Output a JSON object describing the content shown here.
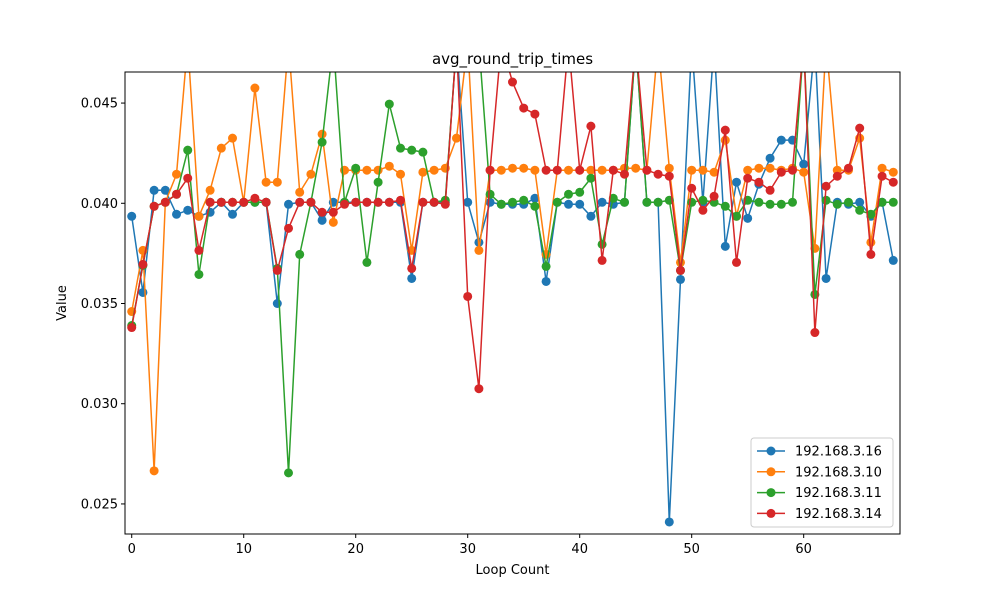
{
  "chart_data": {
    "type": "line",
    "title": "avg_round_trip_times",
    "xlabel": "Loop Count",
    "ylabel": "Value",
    "xlim": [
      -0.6,
      68.6
    ],
    "ylim": [
      0.0235,
      0.04655
    ],
    "xticks": [
      0,
      10,
      20,
      30,
      40,
      50,
      60
    ],
    "xtick_labels": [
      "0",
      "10",
      "20",
      "30",
      "40",
      "50",
      "60"
    ],
    "yticks": [
      0.025,
      0.03,
      0.035,
      0.04,
      0.045
    ],
    "ytick_labels": [
      "0.025",
      "0.030",
      "0.035",
      "0.040",
      "0.045"
    ],
    "legend_position": "lower-right",
    "grid": false,
    "series": [
      {
        "name": "192.168.3.16",
        "color": "#1f77b4",
        "values": [
          0.03935,
          0.03555,
          0.04065,
          0.04065,
          0.03945,
          0.03965,
          0.03935,
          0.03955,
          0.04005,
          0.03945,
          0.04005,
          0.04005,
          0.04005,
          0.035,
          0.03995,
          0.04005,
          0.04005,
          0.03915,
          0.04005,
          0.04005,
          0.04005,
          0.04005,
          0.04005,
          0.04005,
          0.04005,
          0.03625,
          0.04005,
          0.04005,
          0.04005,
          0.048,
          0.04005,
          0.03805,
          0.04005,
          0.03995,
          0.03995,
          0.03995,
          0.04025,
          0.0361,
          0.04005,
          0.03995,
          0.03995,
          0.03935,
          0.04005,
          0.03995,
          0.04005,
          0.048,
          0.04005,
          0.04005,
          0.0241,
          0.0362,
          0.048,
          0.04005,
          0.048,
          0.03785,
          0.04105,
          0.03925,
          0.04095,
          0.04225,
          0.04315,
          0.04315,
          0.04195,
          0.048,
          0.03625,
          0.04005,
          0.03995,
          0.04005,
          0.03935,
          0.04005,
          0.03715
        ]
      },
      {
        "name": "192.168.3.10",
        "color": "#ff7f0e",
        "values": [
          0.0346,
          0.03765,
          0.02665,
          0.04005,
          0.04145,
          0.048,
          0.03935,
          0.04065,
          0.04275,
          0.04325,
          0.04005,
          0.04575,
          0.04105,
          0.04105,
          0.048,
          0.04055,
          0.04145,
          0.04345,
          0.03905,
          0.04165,
          0.04165,
          0.04165,
          0.04165,
          0.04185,
          0.04145,
          0.03765,
          0.04155,
          0.04165,
          0.04175,
          0.04325,
          0.048,
          0.03765,
          0.04165,
          0.04165,
          0.04175,
          0.04175,
          0.04165,
          0.03745,
          0.04165,
          0.04165,
          0.04165,
          0.04165,
          0.04165,
          0.04165,
          0.04175,
          0.04175,
          0.04165,
          0.048,
          0.04175,
          0.03705,
          0.04165,
          0.04165,
          0.04155,
          0.04315,
          0.03935,
          0.04165,
          0.04175,
          0.04175,
          0.04165,
          0.04175,
          0.04155,
          0.03775,
          0.048,
          0.04165,
          0.04165,
          0.04325,
          0.03805,
          0.04175,
          0.04155
        ]
      },
      {
        "name": "192.168.3.11",
        "color": "#2ca02c",
        "values": [
          0.0339,
          0.0369,
          0.03985,
          0.04005,
          0.04045,
          0.04265,
          0.03645,
          0.04005,
          0.04005,
          0.04005,
          0.04005,
          0.04005,
          0.04005,
          0.03675,
          0.02655,
          0.03745,
          0.04005,
          0.04305,
          0.048,
          0.04005,
          0.04175,
          0.03705,
          0.04105,
          0.04495,
          0.04275,
          0.04265,
          0.04255,
          0.04005,
          0.04015,
          0.048,
          0.048,
          0.048,
          0.04045,
          0.03995,
          0.04005,
          0.04015,
          0.03985,
          0.03685,
          0.04005,
          0.04045,
          0.04055,
          0.04125,
          0.03795,
          0.04025,
          0.04005,
          0.048,
          0.04005,
          0.04005,
          0.04015,
          0.03665,
          0.04005,
          0.04015,
          0.04005,
          0.03985,
          0.03935,
          0.04015,
          0.04005,
          0.03995,
          0.03995,
          0.04005,
          0.048,
          0.03545,
          0.04015,
          0.03995,
          0.04005,
          0.03965,
          0.03945,
          0.04005,
          0.04005
        ]
      },
      {
        "name": "192.168.3.14",
        "color": "#d62728",
        "values": [
          0.0338,
          0.03695,
          0.03985,
          0.04005,
          0.04045,
          0.04125,
          0.03765,
          0.04005,
          0.04005,
          0.04005,
          0.04005,
          0.04025,
          0.04005,
          0.03665,
          0.03875,
          0.04005,
          0.04005,
          0.03955,
          0.03955,
          0.03995,
          0.04005,
          0.04005,
          0.04005,
          0.04005,
          0.04015,
          0.03675,
          0.04005,
          0.04005,
          0.03995,
          0.048,
          0.03535,
          0.03075,
          0.04165,
          0.048,
          0.04605,
          0.04475,
          0.04445,
          0.04165,
          0.04165,
          0.048,
          0.04165,
          0.04385,
          0.03715,
          0.04165,
          0.04145,
          0.048,
          0.04165,
          0.04145,
          0.04135,
          0.03665,
          0.04075,
          0.03965,
          0.04035,
          0.04365,
          0.03705,
          0.04125,
          0.04105,
          0.04065,
          0.04155,
          0.04165,
          0.048,
          0.03355,
          0.04085,
          0.04135,
          0.04175,
          0.04375,
          0.03745,
          0.04135,
          0.04105
        ]
      }
    ]
  }
}
